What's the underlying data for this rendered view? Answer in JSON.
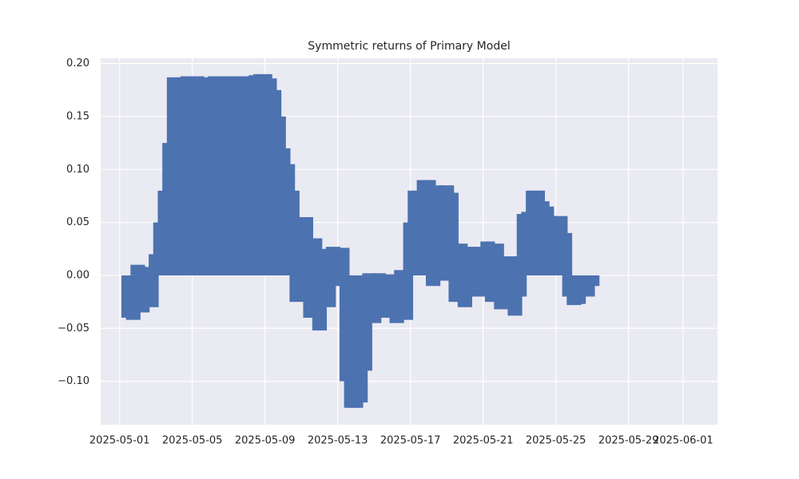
{
  "chart_data": {
    "type": "bar",
    "title": "Symmetric returns of Primary Model",
    "color": "#4c72b0",
    "grid": true,
    "x": [
      "2025-05-01 12:00",
      "2025-05-01 18:00",
      "2025-05-02 00:00",
      "2025-05-02 06:00",
      "2025-05-02 12:00",
      "2025-05-02 18:00",
      "2025-05-03 00:00",
      "2025-05-03 06:00",
      "2025-05-03 12:00",
      "2025-05-03 18:00",
      "2025-05-04 00:00",
      "2025-05-04 06:00",
      "2025-05-04 12:00",
      "2025-05-04 18:00",
      "2025-05-05 00:00",
      "2025-05-05 06:00",
      "2025-05-05 12:00",
      "2025-05-05 18:00",
      "2025-05-06 00:00",
      "2025-05-06 06:00",
      "2025-05-06 12:00",
      "2025-05-06 18:00",
      "2025-05-07 00:00",
      "2025-05-07 06:00",
      "2025-05-07 12:00",
      "2025-05-07 18:00",
      "2025-05-08 00:00",
      "2025-05-08 06:00",
      "2025-05-08 12:00",
      "2025-05-08 18:00",
      "2025-05-09 00:00",
      "2025-05-09 06:00",
      "2025-05-09 12:00",
      "2025-05-09 18:00",
      "2025-05-10 00:00",
      "2025-05-10 06:00",
      "2025-05-10 12:00",
      "2025-05-10 18:00",
      "2025-05-11 00:00",
      "2025-05-11 06:00",
      "2025-05-11 12:00",
      "2025-05-11 18:00",
      "2025-05-12 00:00",
      "2025-05-12 06:00",
      "2025-05-12 12:00",
      "2025-05-12 18:00",
      "2025-05-13 00:00",
      "2025-05-13 06:00",
      "2025-05-13 12:00",
      "2025-05-13 18:00",
      "2025-05-14 00:00",
      "2025-05-14 06:00",
      "2025-05-14 12:00",
      "2025-05-14 18:00",
      "2025-05-15 00:00",
      "2025-05-15 06:00",
      "2025-05-15 12:00",
      "2025-05-15 18:00",
      "2025-05-16 00:00",
      "2025-05-16 06:00",
      "2025-05-16 12:00",
      "2025-05-16 18:00",
      "2025-05-17 00:00",
      "2025-05-17 06:00",
      "2025-05-17 12:00",
      "2025-05-17 18:00",
      "2025-05-18 00:00",
      "2025-05-18 06:00",
      "2025-05-18 12:00",
      "2025-05-18 18:00",
      "2025-05-19 00:00",
      "2025-05-19 06:00",
      "2025-05-19 12:00",
      "2025-05-19 18:00",
      "2025-05-20 00:00",
      "2025-05-20 06:00",
      "2025-05-20 12:00",
      "2025-05-20 18:00",
      "2025-05-21 00:00",
      "2025-05-21 06:00",
      "2025-05-21 12:00",
      "2025-05-21 18:00",
      "2025-05-22 00:00",
      "2025-05-22 06:00",
      "2025-05-22 12:00",
      "2025-05-22 18:00",
      "2025-05-23 00:00",
      "2025-05-23 06:00",
      "2025-05-23 12:00",
      "2025-05-23 18:00",
      "2025-05-24 00:00",
      "2025-05-24 06:00",
      "2025-05-24 12:00",
      "2025-05-24 18:00",
      "2025-05-25 00:00",
      "2025-05-25 06:00",
      "2025-05-25 12:00",
      "2025-05-25 18:00",
      "2025-05-26 00:00",
      "2025-05-26 06:00",
      "2025-05-26 12:00",
      "2025-05-26 18:00",
      "2025-05-27 00:00"
    ],
    "values": [
      -0.04,
      -0.042,
      0.01,
      -0.035,
      0.008,
      -0.03,
      0.02,
      0.05,
      0.08,
      0.125,
      0.187,
      0.187,
      0.186,
      0.188,
      0.187,
      0.188,
      0.187,
      0.186,
      0.187,
      0.188,
      0.187,
      0.187,
      0.188,
      0.187,
      0.186,
      0.188,
      0.188,
      0.187,
      0.189,
      0.19,
      0.19,
      0.186,
      0.175,
      0.15,
      0.12,
      0.105,
      0.08,
      -0.025,
      0.05,
      0.055,
      -0.04,
      0.035,
      -0.052,
      0.025,
      -0.03,
      0.027,
      -0.01,
      0.026,
      -0.1,
      -0.125,
      -0.125,
      -0.12,
      -0.09,
      0.002,
      -0.045,
      0.002,
      -0.04,
      -0.03,
      0.001,
      -0.045,
      0.005,
      -0.042,
      0.05,
      0.08,
      0.08,
      0.09,
      0.09,
      -0.01,
      0.085,
      -0.005,
      0.085,
      0.078,
      -0.025,
      0.03,
      -0.03,
      0.02,
      0.027,
      -0.02,
      0.005,
      0.032,
      -0.025,
      0.03,
      -0.032,
      0.015,
      0.018,
      -0.038,
      -0.02,
      0.058,
      0.06,
      0.08,
      0.08,
      0.07,
      0.065,
      0.056,
      0.055,
      0.056,
      0.04,
      -0.02,
      -0.028,
      -0.027,
      -0.015,
      -0.02,
      -0.01
    ],
    "xlim": [
      "2025-04-29 23:00",
      "2025-06-02 21:30"
    ],
    "xticks": [
      "2025-05-01",
      "2025-05-05",
      "2025-05-09",
      "2025-05-13",
      "2025-05-17",
      "2025-05-21",
      "2025-05-25",
      "2025-05-29",
      "2025-06-01"
    ],
    "ylim": [
      -0.141,
      0.205
    ],
    "yticks": [
      {
        "value": -0.1,
        "label": "−0.10"
      },
      {
        "value": -0.05,
        "label": "−0.05"
      },
      {
        "value": 0,
        "label": "0.00"
      },
      {
        "value": 0.05,
        "label": "0.05"
      },
      {
        "value": 0.1,
        "label": "0.10"
      },
      {
        "value": 0.15,
        "label": "0.15"
      },
      {
        "value": 0.2,
        "label": "0.20"
      }
    ]
  }
}
